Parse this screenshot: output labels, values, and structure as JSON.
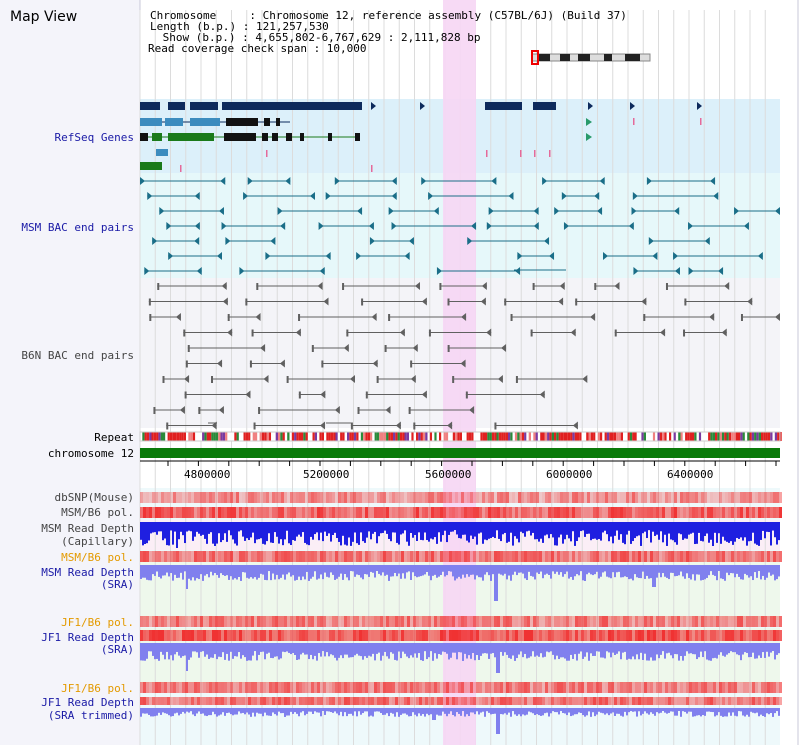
{
  "title": "Map View",
  "info": {
    "chromosome": "Chromosome     : Chromosome 12, reference assembly (C57BL/6J) (Build 37)",
    "length": "Length (b.p.) : 121,257,530",
    "show": " Show (b.p.) : 4,655,802-6,767,629 : 2,111,828 bp",
    "read_coverage": "Read coverage check span : 10,000"
  },
  "tracks": {
    "refseq": "RefSeq Genes",
    "msm_bac": "MSM BAC end pairs",
    "b6n_bac": "B6N BAC end pairs",
    "repeat": "Repeat",
    "chromosome": "chromosome 12",
    "dbsnp": "dbSNP(Mouse)",
    "msm_b6_pol": "MSM/B6 pol.",
    "msm_rd_cap_1": "MSM Read Depth",
    "msm_rd_cap_2": "(Capillary)",
    "msm_b6_pol_2": "MSM/B6 pol.",
    "msm_rd_sra_1": "MSM Read Depth",
    "msm_rd_sra_2": "(SRA)",
    "jf1_b6_pol": "JF1/B6 pol.",
    "jf1_rd_sra_1": "JF1 Read Depth",
    "jf1_rd_sra_2": "(SRA)",
    "jf1_b6_pol_2": "JF1/B6 pol.",
    "jf1_rd_trim_1": "JF1 Read Depth",
    "jf1_rd_trim_2": "(SRA trimmed)"
  },
  "axis_ticks": [
    "4800000",
    "5200000",
    "5600000",
    "6000000",
    "6400000"
  ],
  "colors": {
    "refseq_bg": "#dcf0fa",
    "msm_bg": "#e6f8fa",
    "b6n_bg": "#f4f4f8",
    "highlight": "#f6d6f4",
    "gene_navy": "#0d2a5c",
    "gene_steel": "#3c8cbe",
    "gene_green": "#1a7a1a",
    "bac_teal": "#1a6e88",
    "bac_gray": "#606060",
    "chrom_green": "#0a7a0a",
    "depth_blue": "#1f1fe0",
    "depth_light": "#8080ee",
    "pol_red": "#f04040"
  }
}
